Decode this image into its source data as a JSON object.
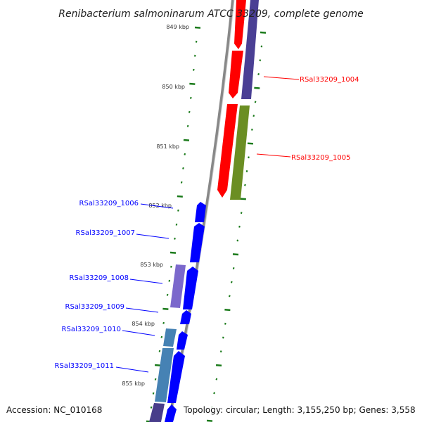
{
  "title": "Renibacterium salmoninarum ATCC 33209, complete genome",
  "scale_labels": [
    "849 kbp",
    "850 kbp",
    "851 kbp",
    "852 kbp",
    "853 kbp",
    "854 kbp",
    "855 kbp"
  ],
  "genes_forward": [
    {
      "label": "RSal33209_1004",
      "color": "#ff0000"
    },
    {
      "label": "RSal33209_1005",
      "color": "#ff0000"
    }
  ],
  "genes_reverse": [
    {
      "label": "RSal33209_1006",
      "color": "#0000ff"
    },
    {
      "label": "RSal33209_1007",
      "color": "#0000ff"
    },
    {
      "label": "RSal33209_1008",
      "color": "#0000ff"
    },
    {
      "label": "RSal33209_1009",
      "color": "#0000ff"
    },
    {
      "label": "RSal33209_1010",
      "color": "#0000ff"
    },
    {
      "label": "RSal33209_1011",
      "color": "#0000ff"
    }
  ],
  "footer": {
    "accession": "Accession: NC_010168",
    "stats": "Topology: circular; Length: 3,155,250 bp; Genes: 3,558"
  }
}
